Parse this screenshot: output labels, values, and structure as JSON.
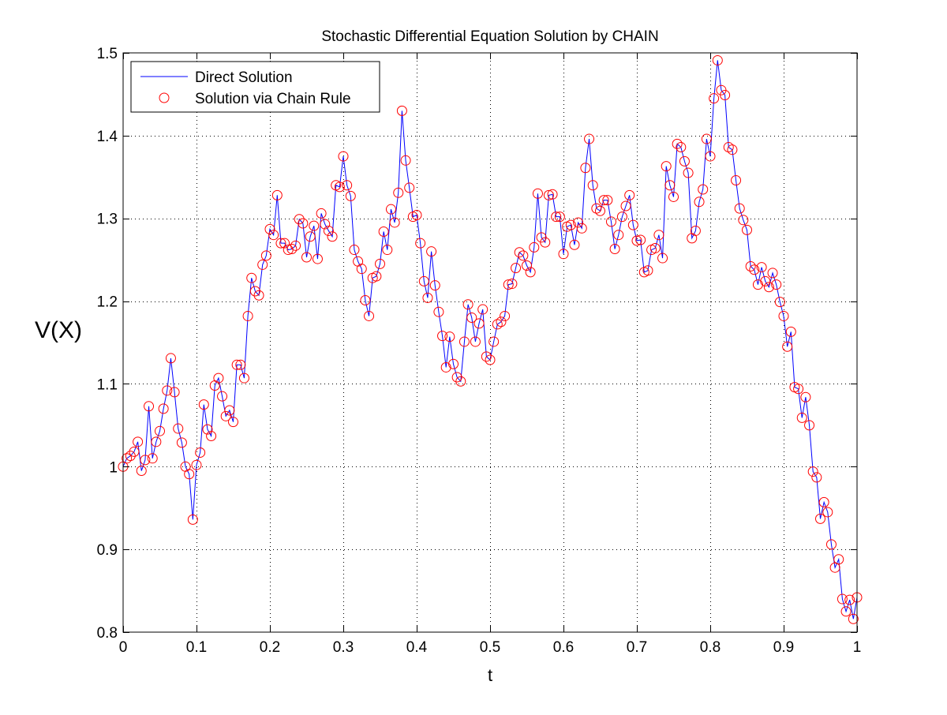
{
  "chart_data": {
    "type": "line",
    "title": "Stochastic Differential Equation Solution by CHAIN",
    "xlabel": "t",
    "ylabel": "V(X)",
    "xlim": [
      0,
      1
    ],
    "ylim": [
      0.8,
      1.5
    ],
    "x_ticks": [
      "0",
      "0.1",
      "0.2",
      "0.3",
      "0.4",
      "0.5",
      "0.6",
      "0.7",
      "0.8",
      "0.9",
      "1"
    ],
    "y_ticks": [
      "0.8",
      "0.9",
      "1",
      "1.1",
      "1.2",
      "1.3",
      "1.4",
      "1.5"
    ],
    "grid": true,
    "legend_position": "top-left",
    "x_step": 0.005,
    "series": [
      {
        "name": "Direct Solution",
        "style": "line",
        "color": "#0000ff",
        "values": [
          1.0,
          1.01,
          1.013,
          1.018,
          1.03,
          0.995,
          1.008,
          1.073,
          1.01,
          1.03,
          1.043,
          1.07,
          1.092,
          1.131,
          1.09,
          1.046,
          1.029,
          1.0,
          0.991,
          0.936,
          1.002,
          1.017,
          1.075,
          1.045,
          1.037,
          1.098,
          1.107,
          1.085,
          1.061,
          1.068,
          1.054,
          1.123,
          1.123,
          1.107,
          1.182,
          1.228,
          1.212,
          1.207,
          1.244,
          1.255,
          1.287,
          1.28,
          1.328,
          1.27,
          1.27,
          1.262,
          1.263,
          1.267,
          1.299,
          1.294,
          1.253,
          1.278,
          1.291,
          1.251,
          1.306,
          1.293,
          1.285,
          1.278,
          1.34,
          1.338,
          1.375,
          1.34,
          1.327,
          1.262,
          1.248,
          1.239,
          1.201,
          1.182,
          1.228,
          1.23,
          1.245,
          1.284,
          1.262,
          1.311,
          1.295,
          1.331,
          1.43,
          1.37,
          1.337,
          1.302,
          1.304,
          1.27,
          1.224,
          1.204,
          1.26,
          1.219,
          1.187,
          1.158,
          1.12,
          1.157,
          1.124,
          1.108,
          1.103,
          1.151,
          1.196,
          1.18,
          1.151,
          1.173,
          1.19,
          1.133,
          1.129,
          1.151,
          1.172,
          1.175,
          1.182,
          1.22,
          1.221,
          1.24,
          1.259,
          1.255,
          1.243,
          1.235,
          1.265,
          1.33,
          1.277,
          1.271,
          1.328,
          1.329,
          1.302,
          1.302,
          1.257,
          1.29,
          1.292,
          1.268,
          1.295,
          1.288,
          1.361,
          1.396,
          1.34,
          1.312,
          1.309,
          1.322,
          1.322,
          1.296,
          1.263,
          1.28,
          1.302,
          1.315,
          1.328,
          1.292,
          1.273,
          1.274,
          1.235,
          1.237,
          1.262,
          1.264,
          1.28,
          1.252,
          1.363,
          1.34,
          1.326,
          1.39,
          1.386,
          1.369,
          1.355,
          1.276,
          1.285,
          1.32,
          1.335,
          1.396,
          1.375,
          1.445,
          1.491,
          1.455,
          1.449,
          1.386,
          1.383,
          1.346,
          1.312,
          1.298,
          1.286,
          1.242,
          1.238,
          1.22,
          1.241,
          1.224,
          1.217,
          1.234,
          1.22,
          1.199,
          1.182,
          1.145,
          1.163,
          1.096,
          1.094,
          1.059,
          1.084,
          1.05,
          0.994,
          0.987,
          0.937,
          0.957,
          0.945,
          0.906,
          0.878,
          0.888,
          0.84,
          0.825,
          0.839,
          0.816,
          0.842
        ]
      },
      {
        "name": "Solution via Chain Rule",
        "style": "markers",
        "marker": "circle",
        "color": "#ff0000",
        "values": [
          1.0,
          1.01,
          1.013,
          1.018,
          1.03,
          0.995,
          1.008,
          1.073,
          1.01,
          1.03,
          1.043,
          1.07,
          1.092,
          1.131,
          1.09,
          1.046,
          1.029,
          1.0,
          0.991,
          0.936,
          1.002,
          1.017,
          1.075,
          1.045,
          1.037,
          1.098,
          1.107,
          1.085,
          1.061,
          1.068,
          1.054,
          1.123,
          1.123,
          1.107,
          1.182,
          1.228,
          1.212,
          1.207,
          1.244,
          1.255,
          1.287,
          1.28,
          1.328,
          1.27,
          1.27,
          1.262,
          1.263,
          1.267,
          1.299,
          1.294,
          1.253,
          1.278,
          1.291,
          1.251,
          1.306,
          1.293,
          1.285,
          1.278,
          1.34,
          1.338,
          1.375,
          1.34,
          1.327,
          1.262,
          1.248,
          1.239,
          1.201,
          1.182,
          1.228,
          1.23,
          1.245,
          1.284,
          1.262,
          1.311,
          1.295,
          1.331,
          1.43,
          1.37,
          1.337,
          1.302,
          1.304,
          1.27,
          1.224,
          1.204,
          1.26,
          1.219,
          1.187,
          1.158,
          1.12,
          1.157,
          1.124,
          1.108,
          1.103,
          1.151,
          1.196,
          1.18,
          1.151,
          1.173,
          1.19,
          1.133,
          1.129,
          1.151,
          1.172,
          1.175,
          1.182,
          1.22,
          1.221,
          1.24,
          1.259,
          1.255,
          1.243,
          1.235,
          1.265,
          1.33,
          1.277,
          1.271,
          1.328,
          1.329,
          1.302,
          1.302,
          1.257,
          1.29,
          1.292,
          1.268,
          1.295,
          1.288,
          1.361,
          1.396,
          1.34,
          1.312,
          1.309,
          1.322,
          1.322,
          1.296,
          1.263,
          1.28,
          1.302,
          1.315,
          1.328,
          1.292,
          1.273,
          1.274,
          1.235,
          1.237,
          1.262,
          1.264,
          1.28,
          1.252,
          1.363,
          1.34,
          1.326,
          1.39,
          1.386,
          1.369,
          1.355,
          1.276,
          1.285,
          1.32,
          1.335,
          1.396,
          1.375,
          1.445,
          1.491,
          1.455,
          1.449,
          1.386,
          1.383,
          1.346,
          1.312,
          1.298,
          1.286,
          1.242,
          1.238,
          1.22,
          1.241,
          1.224,
          1.217,
          1.234,
          1.22,
          1.199,
          1.182,
          1.145,
          1.163,
          1.096,
          1.094,
          1.059,
          1.084,
          1.05,
          0.994,
          0.987,
          0.937,
          0.957,
          0.945,
          0.906,
          0.878,
          0.888,
          0.84,
          0.825,
          0.839,
          0.816,
          0.842
        ]
      }
    ]
  }
}
